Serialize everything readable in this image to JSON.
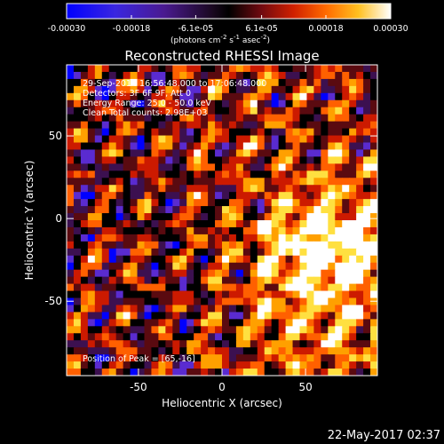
{
  "chart_data": {
    "type": "heatmap",
    "title": "Reconstructed RHESSI Image",
    "xlabel": "Heliocentric X (arcsec)",
    "ylabel": "Heliocentric Y (arcsec)",
    "xlim": [
      -93,
      93
    ],
    "ylim": [
      -95,
      93
    ],
    "xticks": [
      -50,
      0,
      50
    ],
    "yticks": [
      50,
      0,
      -50
    ],
    "colorbar": {
      "ticks": [
        "-0.00030",
        "-0.00018",
        "-6.1e-05",
        "6.1e-05",
        "0.00018",
        "0.00030"
      ],
      "tick_values": [
        -0.0003,
        -0.00018,
        -6.1e-05,
        6.1e-05,
        0.00018,
        0.0003
      ],
      "range": [
        -0.0003,
        0.0003
      ],
      "units_main": "(photons cm",
      "units_exp1": "-2",
      "units_mid": " s",
      "units_exp2": "-1",
      "units_tail": " asec",
      "units_exp3": "-2",
      "units_close": ")",
      "colors": [
        "#0000ff",
        "#5a2bd0",
        "#3c1050",
        "#000000",
        "#5a0a10",
        "#cc1a00",
        "#ff6000",
        "#ffa000",
        "#ffe040",
        "#ffffff"
      ]
    },
    "annotations": {
      "time": "29-Sep-2014 16:56:48.000 to 17:06:48.000",
      "detectors": "Detectors: 3F 6F 9F, Att 0",
      "energy": "Energy Range: 25.0 - 50.0 keV",
      "clean": "Clean    Total counts: 2.98E+03",
      "peak": "Position of Peak = [65,-16]"
    },
    "peak_position": [
      65,
      -16
    ],
    "total_counts": 2980,
    "grid": false,
    "timestamp": "22-May-2017 02:37"
  }
}
